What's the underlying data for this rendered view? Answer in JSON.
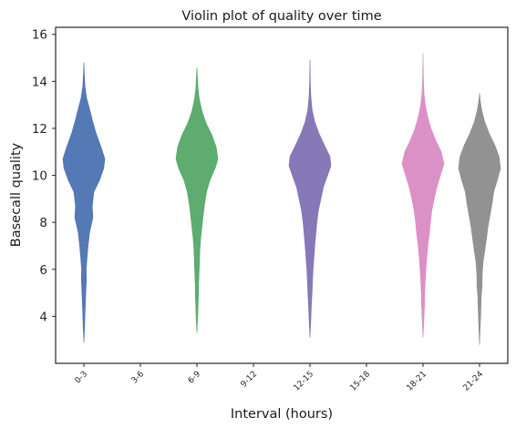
{
  "chart_data": {
    "type": "violin",
    "title": "Violin plot of quality over time",
    "xlabel": "Interval (hours)",
    "ylabel": "Basecall quality",
    "ylim": [
      2.0,
      16.3
    ],
    "yticks": [
      4,
      6,
      8,
      10,
      12,
      14,
      16
    ],
    "grid": false,
    "categories": [
      "0-3",
      "3-6",
      "6-9",
      "9-12",
      "12-15",
      "15-18",
      "18-21",
      "21-24"
    ],
    "violins": [
      {
        "category": "0-3",
        "color": "#4c72b0",
        "min": 2.9,
        "max": 14.8,
        "profile": [
          [
            2.9,
            0.0
          ],
          [
            3.5,
            0.03
          ],
          [
            4.5,
            0.07
          ],
          [
            5.0,
            0.09
          ],
          [
            5.6,
            0.12
          ],
          [
            6.0,
            0.11
          ],
          [
            6.5,
            0.15
          ],
          [
            7.0,
            0.2
          ],
          [
            7.6,
            0.28
          ],
          [
            8.2,
            0.43
          ],
          [
            8.7,
            0.4
          ],
          [
            9.3,
            0.48
          ],
          [
            9.8,
            0.75
          ],
          [
            10.3,
            0.95
          ],
          [
            10.7,
            1.0
          ],
          [
            11.2,
            0.82
          ],
          [
            11.8,
            0.58
          ],
          [
            12.3,
            0.42
          ],
          [
            12.8,
            0.28
          ],
          [
            13.3,
            0.13
          ],
          [
            13.8,
            0.05
          ],
          [
            14.3,
            0.02
          ],
          [
            14.8,
            0.0
          ]
        ]
      },
      {
        "category": "6-9",
        "color": "#55a868",
        "min": 3.3,
        "max": 14.6,
        "profile": [
          [
            3.3,
            0.0
          ],
          [
            4.0,
            0.04
          ],
          [
            4.8,
            0.07
          ],
          [
            5.3,
            0.08
          ],
          [
            5.8,
            0.1
          ],
          [
            6.3,
            0.12
          ],
          [
            6.8,
            0.14
          ],
          [
            7.3,
            0.18
          ],
          [
            7.8,
            0.24
          ],
          [
            8.3,
            0.3
          ],
          [
            8.8,
            0.37
          ],
          [
            9.3,
            0.46
          ],
          [
            9.8,
            0.62
          ],
          [
            10.3,
            0.87
          ],
          [
            10.7,
            1.0
          ],
          [
            11.2,
            0.92
          ],
          [
            11.7,
            0.72
          ],
          [
            12.2,
            0.45
          ],
          [
            12.7,
            0.25
          ],
          [
            13.2,
            0.12
          ],
          [
            13.7,
            0.05
          ],
          [
            14.2,
            0.02
          ],
          [
            14.6,
            0.0
          ]
        ]
      },
      {
        "category": "12-15",
        "color": "#8172b3",
        "min": 3.1,
        "max": 14.9,
        "profile": [
          [
            3.1,
            0.0
          ],
          [
            3.8,
            0.04
          ],
          [
            4.5,
            0.07
          ],
          [
            5.0,
            0.1
          ],
          [
            5.5,
            0.12
          ],
          [
            6.0,
            0.15
          ],
          [
            6.5,
            0.19
          ],
          [
            7.0,
            0.23
          ],
          [
            7.5,
            0.28
          ],
          [
            8.0,
            0.33
          ],
          [
            8.5,
            0.4
          ],
          [
            9.0,
            0.52
          ],
          [
            9.5,
            0.64
          ],
          [
            10.0,
            0.84
          ],
          [
            10.4,
            1.0
          ],
          [
            10.8,
            0.95
          ],
          [
            11.3,
            0.68
          ],
          [
            11.8,
            0.42
          ],
          [
            12.3,
            0.22
          ],
          [
            12.8,
            0.1
          ],
          [
            13.3,
            0.05
          ],
          [
            13.8,
            0.02
          ],
          [
            14.9,
            0.0
          ]
        ]
      },
      {
        "category": "18-21",
        "color": "#da8bc3",
        "min": 3.1,
        "max": 15.2,
        "profile": [
          [
            3.1,
            0.0
          ],
          [
            3.8,
            0.04
          ],
          [
            4.5,
            0.07
          ],
          [
            5.0,
            0.08
          ],
          [
            5.5,
            0.11
          ],
          [
            6.0,
            0.14
          ],
          [
            6.5,
            0.18
          ],
          [
            7.0,
            0.23
          ],
          [
            7.5,
            0.3
          ],
          [
            8.0,
            0.35
          ],
          [
            8.5,
            0.42
          ],
          [
            9.0,
            0.53
          ],
          [
            9.5,
            0.66
          ],
          [
            10.0,
            0.83
          ],
          [
            10.5,
            1.0
          ],
          [
            11.0,
            0.87
          ],
          [
            11.5,
            0.6
          ],
          [
            12.0,
            0.38
          ],
          [
            12.5,
            0.22
          ],
          [
            13.0,
            0.11
          ],
          [
            13.5,
            0.05
          ],
          [
            14.0,
            0.02
          ],
          [
            15.2,
            0.0
          ]
        ]
      },
      {
        "category": "21-24",
        "color": "#8c8c8c",
        "min": 2.8,
        "max": 13.5,
        "profile": [
          [
            2.8,
            0.0
          ],
          [
            3.5,
            0.03
          ],
          [
            4.2,
            0.06
          ],
          [
            4.8,
            0.08
          ],
          [
            5.3,
            0.12
          ],
          [
            5.8,
            0.13
          ],
          [
            6.3,
            0.17
          ],
          [
            6.8,
            0.25
          ],
          [
            7.3,
            0.33
          ],
          [
            7.8,
            0.4
          ],
          [
            8.3,
            0.5
          ],
          [
            8.8,
            0.6
          ],
          [
            9.3,
            0.68
          ],
          [
            9.8,
            0.85
          ],
          [
            10.3,
            1.0
          ],
          [
            10.8,
            0.93
          ],
          [
            11.3,
            0.72
          ],
          [
            11.8,
            0.45
          ],
          [
            12.3,
            0.24
          ],
          [
            12.8,
            0.1
          ],
          [
            13.2,
            0.03
          ],
          [
            13.5,
            0.0
          ]
        ]
      }
    ]
  }
}
